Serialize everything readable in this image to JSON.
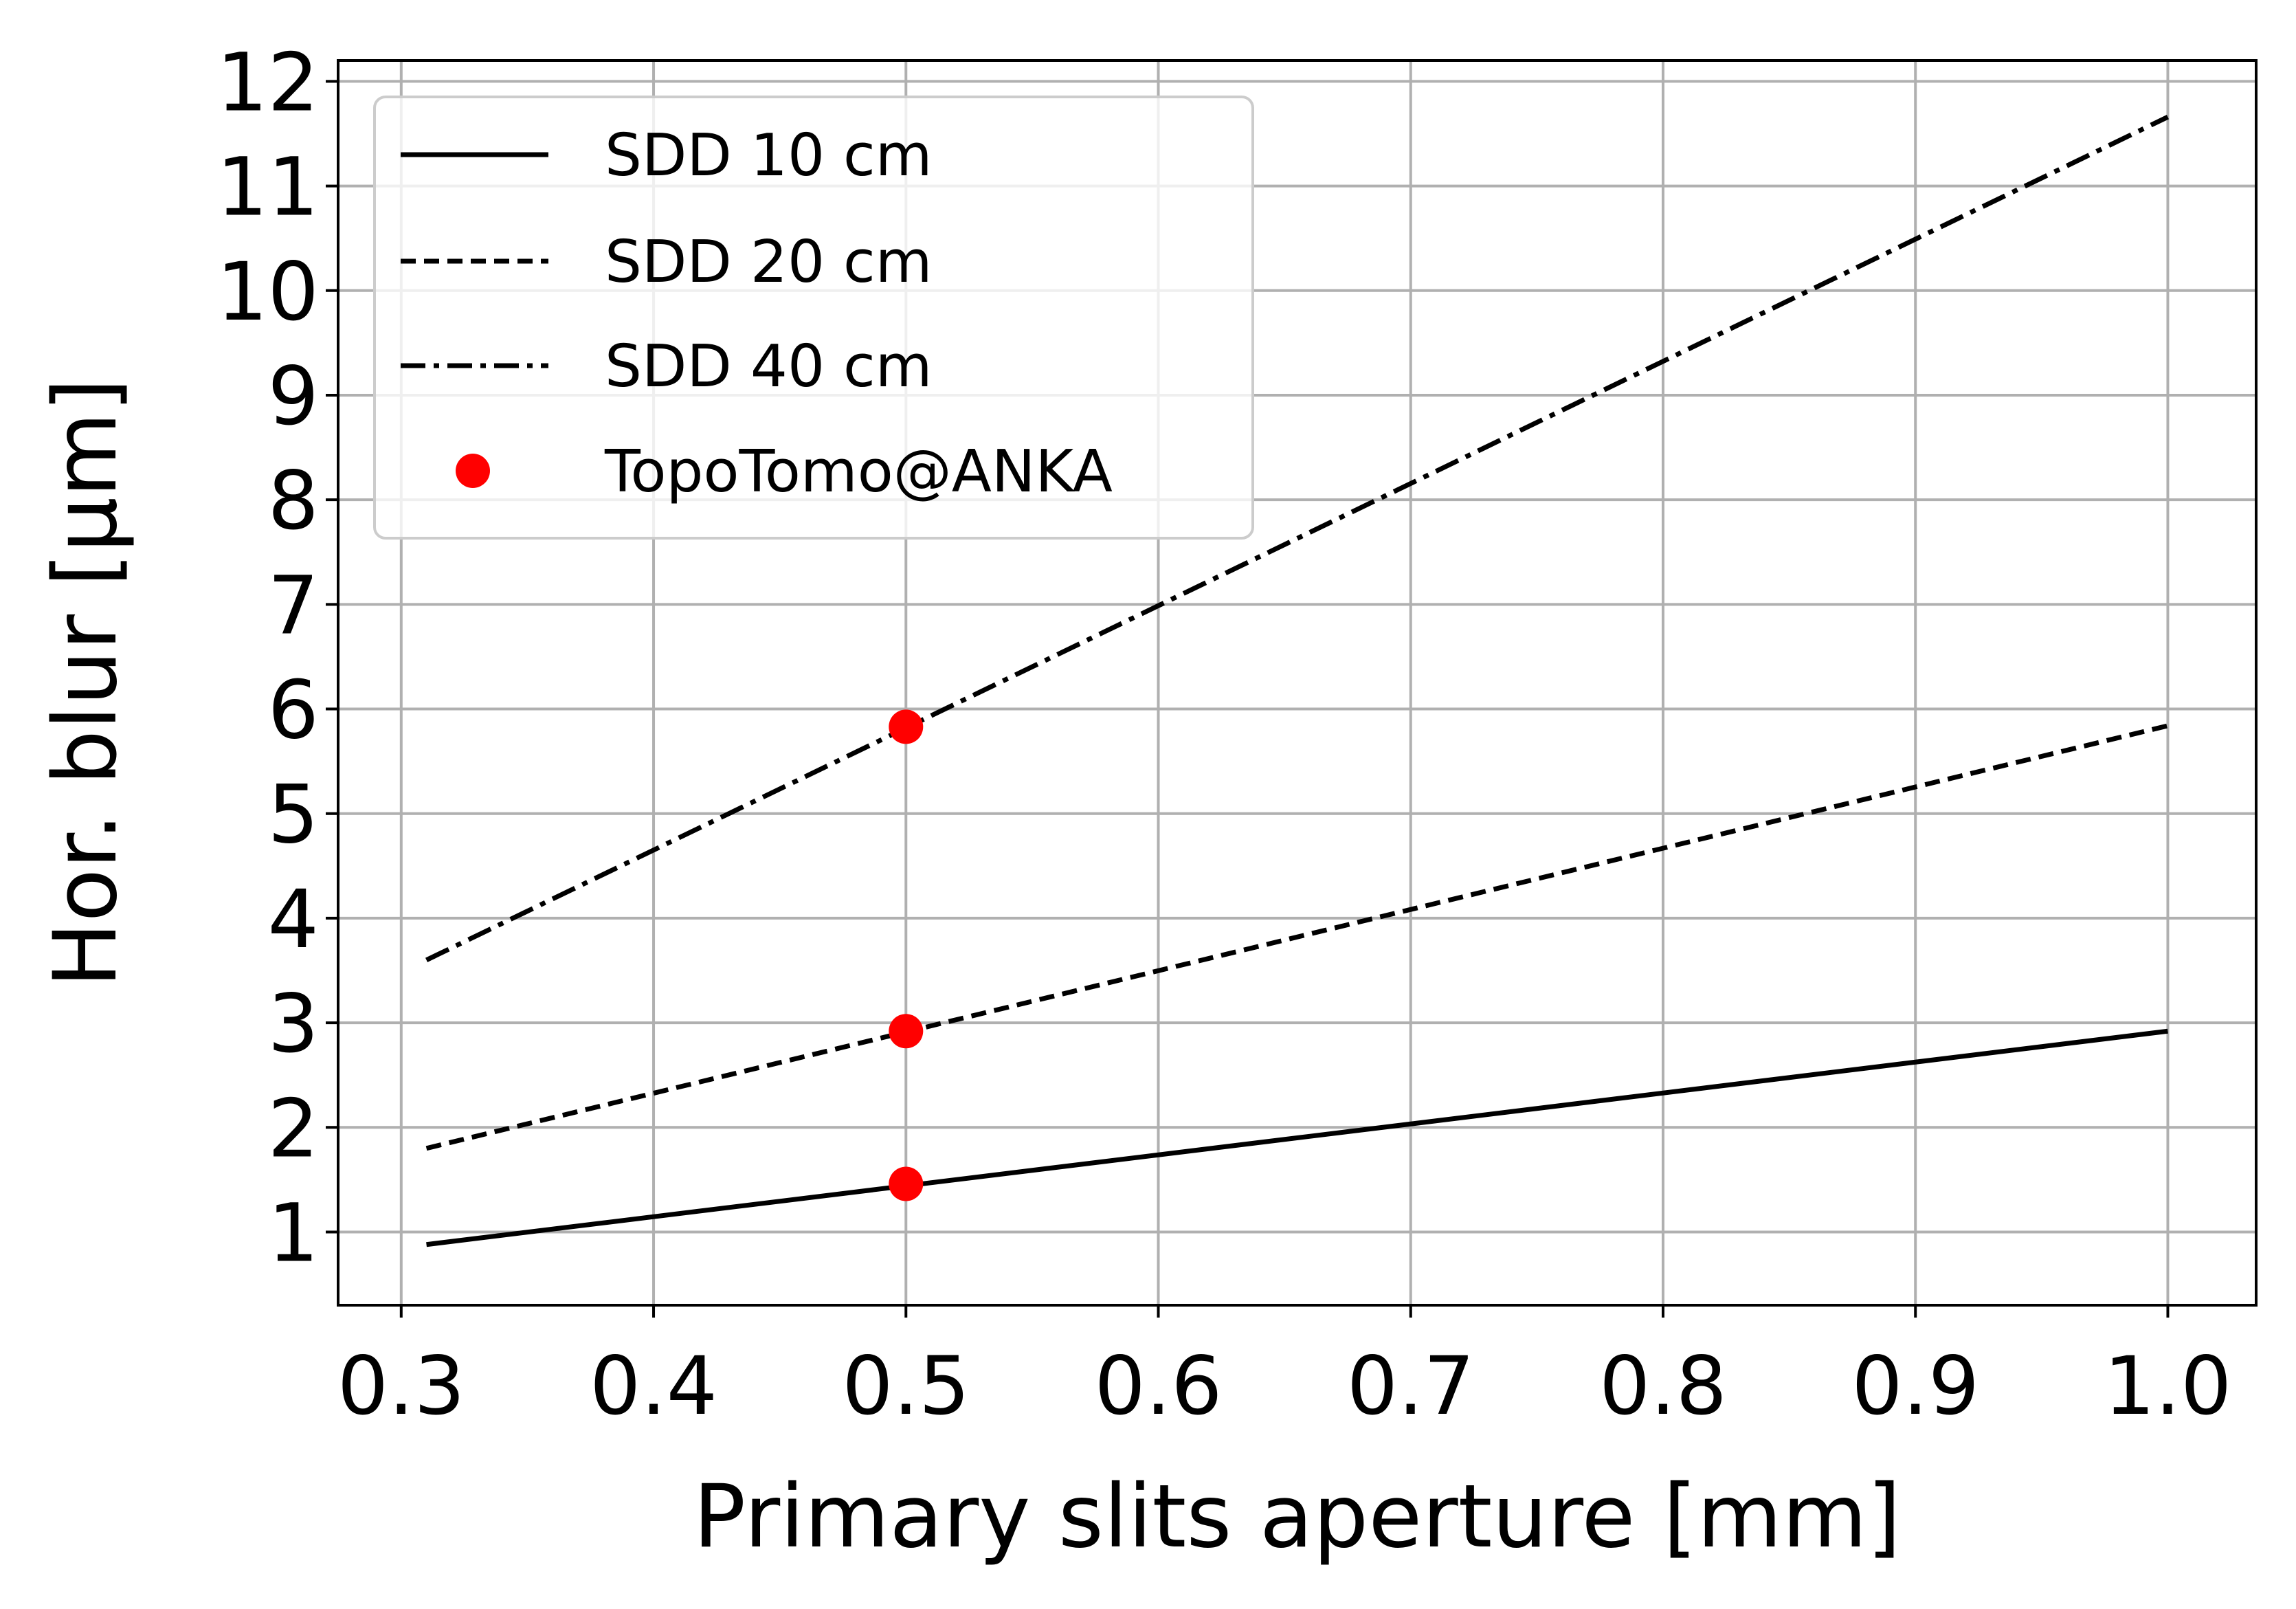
{
  "chart_data": {
    "type": "line",
    "xlabel": "Primary slits aperture [mm]",
    "ylabel": "Hor. blur [μm]",
    "xlim": [
      0.275,
      1.035
    ],
    "ylim": [
      0.3,
      12.2
    ],
    "xticks": [
      0.3,
      0.4,
      0.5,
      0.6,
      0.7,
      0.8,
      0.9,
      1.0
    ],
    "xtick_labels": [
      "0.3",
      "0.4",
      "0.5",
      "0.6",
      "0.7",
      "0.8",
      "0.9",
      "1.0"
    ],
    "yticks": [
      1,
      2,
      3,
      4,
      5,
      6,
      7,
      8,
      9,
      10,
      11,
      12
    ],
    "ytick_labels": [
      "1",
      "2",
      "3",
      "4",
      "5",
      "6",
      "7",
      "8",
      "9",
      "10",
      "11",
      "12"
    ],
    "grid": true,
    "legend_position": "top-left",
    "series": [
      {
        "name": "SDD 10 cm",
        "style": "solid",
        "color": "#000000",
        "x": [
          0.31,
          1.0
        ],
        "y": [
          0.88,
          2.92
        ]
      },
      {
        "name": "SDD 20 cm",
        "style": "dashed",
        "color": "#000000",
        "x": [
          0.31,
          1.0
        ],
        "y": [
          1.8,
          5.84
        ]
      },
      {
        "name": "SDD 40 cm",
        "style": "dashdot",
        "color": "#000000",
        "x": [
          0.31,
          1.0
        ],
        "y": [
          3.6,
          11.66
        ]
      },
      {
        "name": "TopoTomo@ANKA",
        "style": "markers",
        "color": "#ff0000",
        "x": [
          0.5,
          0.5,
          0.5
        ],
        "y": [
          1.46,
          2.92,
          5.83
        ]
      }
    ]
  }
}
